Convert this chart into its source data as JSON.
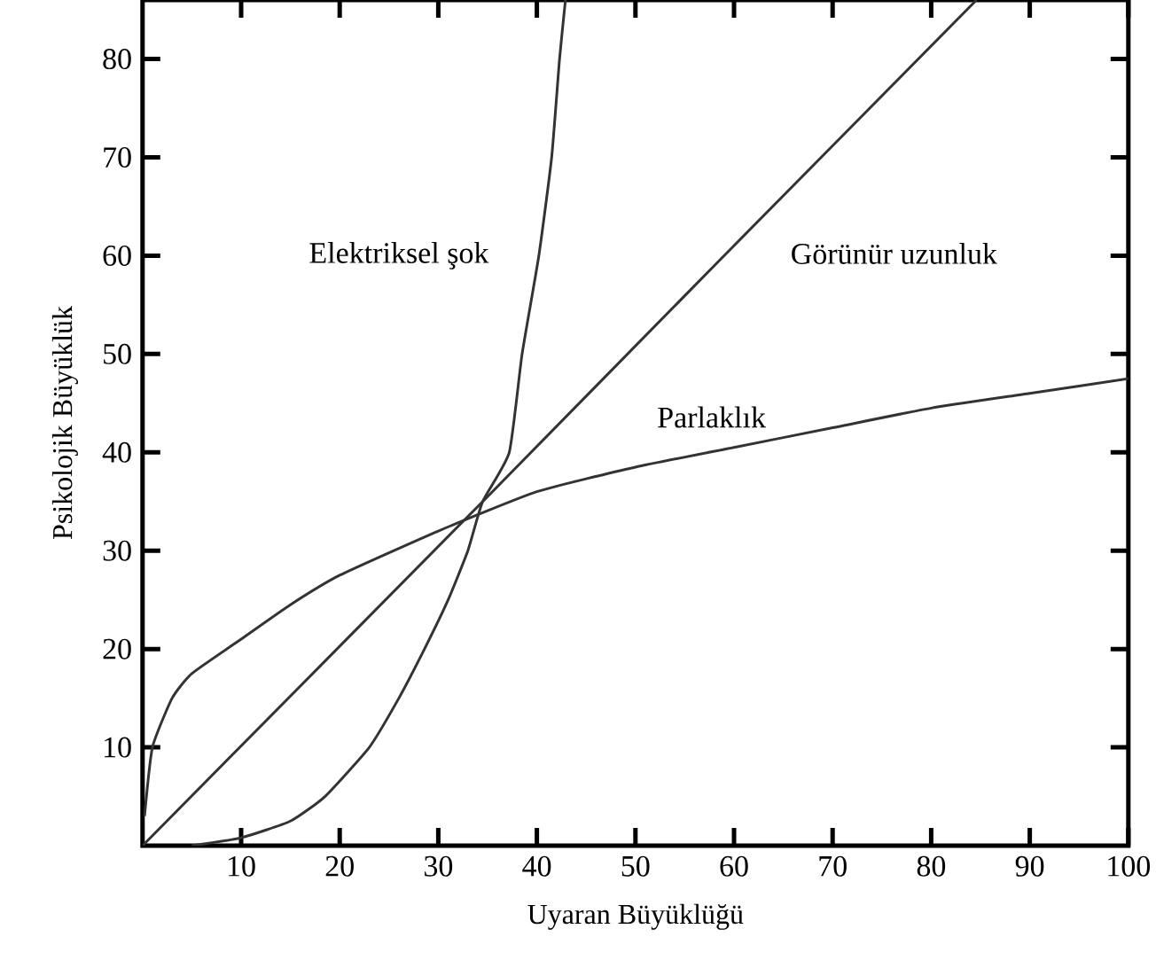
{
  "chart_data": {
    "type": "line",
    "xlabel": "Uyaran Büyüklüğü",
    "ylabel": "Psikolojik Büyüklük",
    "xlim": [
      0,
      100
    ],
    "ylim": [
      0,
      86
    ],
    "xticks": [
      10,
      20,
      30,
      40,
      50,
      60,
      70,
      80,
      90,
      100
    ],
    "yticks": [
      10,
      20,
      30,
      40,
      50,
      60,
      70,
      80
    ],
    "grid": false,
    "legend": false,
    "marker": "none",
    "line_style": "solid",
    "series": [
      {
        "name": "Elektriksel şok",
        "color": "#333333",
        "x": [
          5,
          10,
          15,
          18.5,
          23,
          26,
          28.6,
          31,
          33,
          34.5,
          37.2,
          38.5,
          40.2,
          41.5,
          42.3,
          42.9
        ],
        "values": [
          0,
          0.8,
          2.5,
          5,
          10,
          15,
          20,
          25,
          30,
          35,
          40,
          50,
          60,
          70,
          80,
          86
        ]
      },
      {
        "name": "Görünür uzunluk",
        "color": "#333333",
        "x": [
          0,
          35,
          58.5,
          84.6
        ],
        "values": [
          0,
          35.5,
          59.5,
          86
        ]
      },
      {
        "name": "Parlaklık",
        "color": "#333333",
        "x": [
          0.2,
          1,
          3,
          5,
          10,
          15,
          20,
          30,
          40,
          50,
          60,
          70,
          80,
          90,
          100
        ],
        "values": [
          3,
          10,
          15,
          17.5,
          21,
          24.5,
          27.5,
          32,
          36,
          38.5,
          40.5,
          42.5,
          44.5,
          46,
          47.5
        ]
      }
    ]
  }
}
